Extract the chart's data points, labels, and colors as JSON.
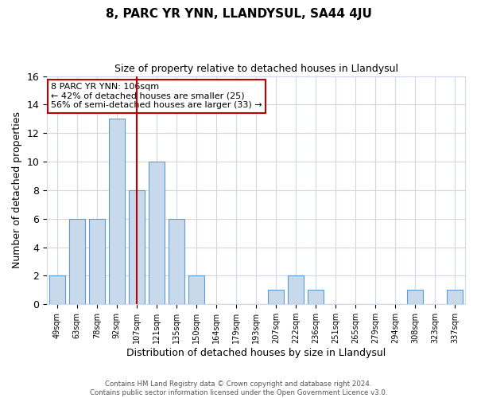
{
  "title": "8, PARC YR YNN, LLANDYSUL, SA44 4JU",
  "subtitle": "Size of property relative to detached houses in Llandysul",
  "xlabel": "Distribution of detached houses by size in Llandysul",
  "ylabel": "Number of detached properties",
  "bar_labels": [
    "49sqm",
    "63sqm",
    "78sqm",
    "92sqm",
    "107sqm",
    "121sqm",
    "135sqm",
    "150sqm",
    "164sqm",
    "179sqm",
    "193sqm",
    "207sqm",
    "222sqm",
    "236sqm",
    "251sqm",
    "265sqm",
    "279sqm",
    "294sqm",
    "308sqm",
    "323sqm",
    "337sqm"
  ],
  "bar_values": [
    2,
    6,
    6,
    13,
    8,
    10,
    6,
    2,
    0,
    0,
    0,
    1,
    2,
    1,
    0,
    0,
    0,
    0,
    1,
    0,
    1
  ],
  "bar_color": "#c9d9ec",
  "bar_edge_color": "#5b9bd5",
  "vline_x_index": 4,
  "vline_color": "#c00000",
  "annotation_line1": "8 PARC YR YNN: 106sqm",
  "annotation_line2": "← 42% of detached houses are smaller (25)",
  "annotation_line3": "56% of semi-detached houses are larger (33) →",
  "annotation_box_color": "#c00000",
  "ylim": [
    0,
    16
  ],
  "yticks": [
    0,
    2,
    4,
    6,
    8,
    10,
    12,
    14,
    16
  ],
  "footer_line1": "Contains HM Land Registry data © Crown copyright and database right 2024.",
  "footer_line2": "Contains public sector information licensed under the Open Government Licence v3.0.",
  "background_color": "#ffffff",
  "grid_color": "#d0d8e8",
  "bar_width": 0.8
}
